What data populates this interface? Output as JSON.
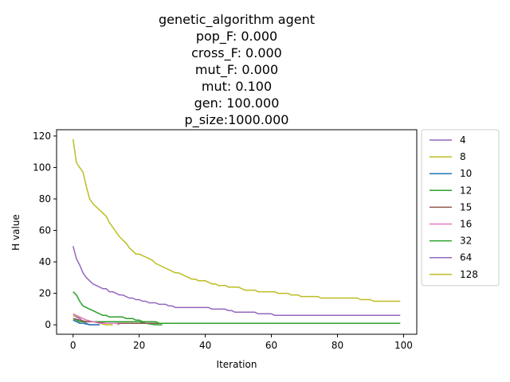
{
  "chart_data": {
    "type": "line",
    "title_lines": [
      "genetic_algorithm agent",
      "pop_F:   0.000",
      "cross_F:   0.000",
      "mut_F:   0.000",
      "mut:   0.100",
      "gen: 100.000",
      "p_size:1000.000"
    ],
    "xlabel": "Iteration",
    "ylabel": "H value",
    "xlim": [
      -5,
      104
    ],
    "ylim": [
      -6,
      124
    ],
    "xticks": [
      0,
      20,
      40,
      60,
      80,
      100
    ],
    "yticks": [
      0,
      20,
      40,
      60,
      80,
      100,
      120
    ],
    "grid": false,
    "legend_position": "outside-right",
    "series": [
      {
        "name": "4",
        "color": "#9467bd",
        "points": [
          [
            0,
            6
          ],
          [
            1,
            5
          ],
          [
            2,
            4
          ],
          [
            3,
            2
          ],
          [
            4,
            1
          ],
          [
            5,
            0
          ],
          [
            8,
            0
          ]
        ]
      },
      {
        "name": "8",
        "color": "#bcbd22",
        "points": [
          [
            0,
            6
          ],
          [
            2,
            5
          ],
          [
            4,
            3
          ],
          [
            6,
            2
          ],
          [
            8,
            1
          ],
          [
            10,
            0
          ],
          [
            12,
            0
          ]
        ]
      },
      {
        "name": "10",
        "color": "#1f77b4",
        "points": [
          [
            0,
            3
          ],
          [
            1,
            2
          ],
          [
            2,
            1
          ],
          [
            3,
            1
          ],
          [
            5,
            0
          ],
          [
            8,
            0
          ]
        ]
      },
      {
        "name": "12",
        "color": "#2ca02c",
        "points": [
          [
            0,
            4
          ],
          [
            1,
            3
          ],
          [
            2,
            2
          ],
          [
            3,
            2
          ],
          [
            5,
            2
          ],
          [
            20,
            2
          ],
          [
            22,
            1
          ],
          [
            25,
            0
          ],
          [
            27,
            0
          ]
        ]
      },
      {
        "name": "15",
        "color": "#8c564b",
        "points": [
          [
            0,
            4
          ],
          [
            2,
            3
          ],
          [
            4,
            2
          ],
          [
            6,
            2
          ],
          [
            10,
            1
          ],
          [
            15,
            1
          ],
          [
            20,
            1
          ],
          [
            24,
            1
          ],
          [
            26,
            1
          ]
        ]
      },
      {
        "name": "16",
        "color": "#e377c2",
        "points": [
          [
            0,
            7
          ],
          [
            2,
            5
          ],
          [
            4,
            3
          ],
          [
            6,
            2
          ],
          [
            8,
            1
          ],
          [
            10,
            1
          ],
          [
            12,
            1
          ],
          [
            13,
            1
          ],
          [
            14,
            0
          ]
        ]
      },
      {
        "name": "32",
        "color": "#2ca02c",
        "points": [
          [
            0,
            21
          ],
          [
            1,
            19
          ],
          [
            2,
            15
          ],
          [
            3,
            12
          ],
          [
            4,
            11
          ],
          [
            5,
            10
          ],
          [
            6,
            9
          ],
          [
            7,
            8
          ],
          [
            8,
            7
          ],
          [
            9,
            6
          ],
          [
            10,
            6
          ],
          [
            11,
            5
          ],
          [
            15,
            5
          ],
          [
            16,
            4
          ],
          [
            18,
            4
          ],
          [
            19,
            3
          ],
          [
            20,
            3
          ],
          [
            21,
            2
          ],
          [
            25,
            2
          ],
          [
            26,
            1
          ],
          [
            40,
            1
          ],
          [
            60,
            1
          ],
          [
            80,
            1
          ],
          [
            99,
            1
          ]
        ]
      },
      {
        "name": "64",
        "color": "#9467bd",
        "points": [
          [
            0,
            50
          ],
          [
            1,
            42
          ],
          [
            2,
            38
          ],
          [
            3,
            33
          ],
          [
            4,
            30
          ],
          [
            5,
            28
          ],
          [
            6,
            26
          ],
          [
            7,
            25
          ],
          [
            8,
            24
          ],
          [
            9,
            23
          ],
          [
            10,
            23
          ],
          [
            11,
            21
          ],
          [
            12,
            21
          ],
          [
            13,
            20
          ],
          [
            14,
            19
          ],
          [
            15,
            19
          ],
          [
            16,
            18
          ],
          [
            17,
            17
          ],
          [
            18,
            17
          ],
          [
            19,
            16
          ],
          [
            20,
            16
          ],
          [
            21,
            15
          ],
          [
            22,
            15
          ],
          [
            23,
            14
          ],
          [
            24,
            14
          ],
          [
            25,
            14
          ],
          [
            26,
            13
          ],
          [
            28,
            13
          ],
          [
            29,
            12
          ],
          [
            30,
            12
          ],
          [
            31,
            11
          ],
          [
            40,
            11
          ],
          [
            41,
            11
          ],
          [
            42,
            10
          ],
          [
            46,
            10
          ],
          [
            47,
            9
          ],
          [
            48,
            9
          ],
          [
            49,
            8
          ],
          [
            55,
            8
          ],
          [
            56,
            7
          ],
          [
            60,
            7
          ],
          [
            61,
            6
          ],
          [
            70,
            6
          ],
          [
            80,
            6
          ],
          [
            90,
            6
          ],
          [
            99,
            6
          ]
        ]
      },
      {
        "name": "128",
        "color": "#bcbd22",
        "points": [
          [
            0,
            118
          ],
          [
            1,
            103
          ],
          [
            2,
            100
          ],
          [
            3,
            97
          ],
          [
            4,
            88
          ],
          [
            5,
            80
          ],
          [
            6,
            77
          ],
          [
            7,
            75
          ],
          [
            8,
            73
          ],
          [
            9,
            71
          ],
          [
            10,
            69
          ],
          [
            11,
            65
          ],
          [
            12,
            62
          ],
          [
            13,
            59
          ],
          [
            14,
            56
          ],
          [
            15,
            54
          ],
          [
            16,
            52
          ],
          [
            17,
            49
          ],
          [
            18,
            47
          ],
          [
            19,
            45
          ],
          [
            20,
            45
          ],
          [
            21,
            44
          ],
          [
            22,
            43
          ],
          [
            23,
            42
          ],
          [
            24,
            41
          ],
          [
            25,
            39
          ],
          [
            26,
            38
          ],
          [
            27,
            37
          ],
          [
            28,
            36
          ],
          [
            29,
            35
          ],
          [
            30,
            34
          ],
          [
            31,
            33
          ],
          [
            32,
            33
          ],
          [
            33,
            32
          ],
          [
            34,
            31
          ],
          [
            35,
            30
          ],
          [
            36,
            29
          ],
          [
            37,
            29
          ],
          [
            38,
            28
          ],
          [
            40,
            28
          ],
          [
            41,
            27
          ],
          [
            42,
            26
          ],
          [
            43,
            26
          ],
          [
            44,
            25
          ],
          [
            46,
            25
          ],
          [
            47,
            24
          ],
          [
            50,
            24
          ],
          [
            51,
            23
          ],
          [
            52,
            22
          ],
          [
            55,
            22
          ],
          [
            56,
            21
          ],
          [
            61,
            21
          ],
          [
            62,
            20
          ],
          [
            65,
            20
          ],
          [
            66,
            19
          ],
          [
            68,
            19
          ],
          [
            69,
            18
          ],
          [
            74,
            18
          ],
          [
            75,
            17
          ],
          [
            86,
            17
          ],
          [
            87,
            16
          ],
          [
            90,
            16
          ],
          [
            91,
            15
          ],
          [
            99,
            15
          ]
        ]
      }
    ]
  }
}
